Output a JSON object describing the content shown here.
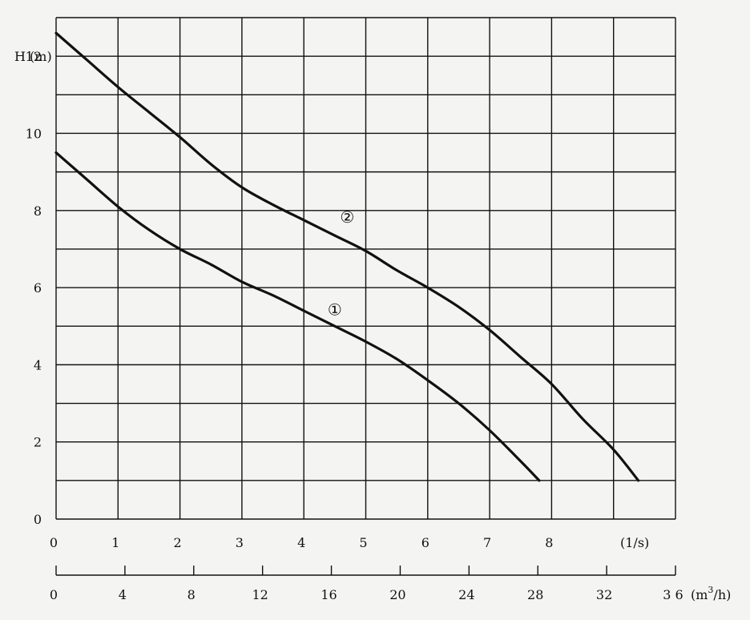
{
  "chart_data": {
    "type": "line",
    "ylabel": "H (m)",
    "ylim": [
      0,
      13
    ],
    "yticks": [
      {
        "value": 0,
        "label": "0"
      },
      {
        "value": 2,
        "label": "2"
      },
      {
        "value": 4,
        "label": "4"
      },
      {
        "value": 6,
        "label": "6"
      },
      {
        "value": 8,
        "label": "8"
      },
      {
        "value": 10,
        "label": "10"
      },
      {
        "value": 12,
        "label": "12"
      }
    ],
    "xlim": [
      0,
      10
    ],
    "x_axis_ls": {
      "unit": "(1/s)",
      "ticks": [
        {
          "value": 0,
          "label": "0"
        },
        {
          "value": 1,
          "label": "1"
        },
        {
          "value": 2,
          "label": "2"
        },
        {
          "value": 3,
          "label": "3"
        },
        {
          "value": 4,
          "label": "4"
        },
        {
          "value": 5,
          "label": "5"
        },
        {
          "value": 6,
          "label": "6"
        },
        {
          "value": 7,
          "label": "7"
        },
        {
          "value": 8,
          "label": "8"
        }
      ]
    },
    "x_axis_m3h": {
      "unit_base": "(m",
      "unit_sup": "3",
      "unit_tail": "/h)",
      "ticks": [
        {
          "value": 0,
          "label": "0"
        },
        {
          "value": 4,
          "label": "4"
        },
        {
          "value": 8,
          "label": "8"
        },
        {
          "value": 12,
          "label": "12"
        },
        {
          "value": 16,
          "label": "16"
        },
        {
          "value": 20,
          "label": "20"
        },
        {
          "value": 24,
          "label": "24"
        },
        {
          "value": 28,
          "label": "28"
        },
        {
          "value": 32,
          "label": "32"
        },
        {
          "value": 36,
          "label": "3 6"
        }
      ]
    },
    "grid": true,
    "series": [
      {
        "label": "①",
        "label_at": [
          4.5,
          5.4
        ],
        "points": [
          [
            0,
            9.5
          ],
          [
            0.5,
            8.8
          ],
          [
            1,
            8.1
          ],
          [
            1.5,
            7.5
          ],
          [
            2,
            7.0
          ],
          [
            2.5,
            6.6
          ],
          [
            3,
            6.15
          ],
          [
            3.5,
            5.8
          ],
          [
            4,
            5.4
          ],
          [
            4.5,
            5.0
          ],
          [
            5,
            4.6
          ],
          [
            5.5,
            4.15
          ],
          [
            6,
            3.6
          ],
          [
            6.5,
            3.0
          ],
          [
            7,
            2.3
          ],
          [
            7.5,
            1.5
          ],
          [
            7.8,
            1.0
          ]
        ]
      },
      {
        "label": "②",
        "label_at": [
          4.7,
          7.8
        ],
        "points": [
          [
            0,
            12.6
          ],
          [
            0.5,
            11.9
          ],
          [
            1,
            11.2
          ],
          [
            1.5,
            10.55
          ],
          [
            2,
            9.9
          ],
          [
            2.5,
            9.2
          ],
          [
            3,
            8.6
          ],
          [
            3.5,
            8.15
          ],
          [
            4,
            7.75
          ],
          [
            4.5,
            7.35
          ],
          [
            5,
            6.95
          ],
          [
            5.5,
            6.45
          ],
          [
            6,
            6.0
          ],
          [
            6.5,
            5.5
          ],
          [
            7,
            4.9
          ],
          [
            7.5,
            4.2
          ],
          [
            8,
            3.5
          ],
          [
            8.5,
            2.6
          ],
          [
            9,
            1.8
          ],
          [
            9.4,
            1.0
          ]
        ]
      }
    ]
  }
}
